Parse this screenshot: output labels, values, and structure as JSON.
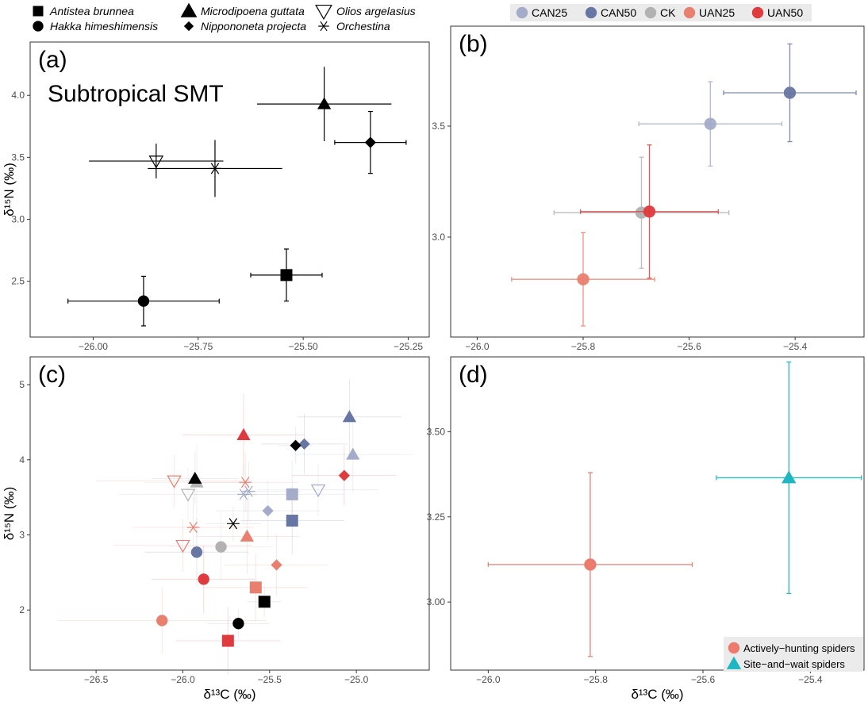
{
  "colors": {
    "CAN25": "#a4acc9",
    "CAN50": "#6876a3",
    "CK": "#b2b2b2",
    "UAN25": "#e9806f",
    "UAN50": "#df3a3d",
    "black": "#000000",
    "active": "#ec7a6d",
    "sitewait": "#1cb7c1"
  },
  "chart_data": [
    {
      "panel": "(a)",
      "type": "scatter",
      "annotation": "Subtropical SMT",
      "xlabel": "",
      "ylabel": "δ¹⁵N (‰)",
      "xlim": [
        -26.15,
        -25.2
      ],
      "ylim": [
        2.05,
        4.43
      ],
      "xticks": [
        -26.0,
        -25.75,
        -25.5,
        -25.25
      ],
      "xtick_labels": [
        "−26.00",
        "−25.75",
        "−25.50",
        "−25.25"
      ],
      "yticks": [
        2.5,
        3.0,
        3.5,
        4.0
      ],
      "ytick_labels": [
        "2.5",
        "3.0",
        "3.5",
        "4.0"
      ],
      "legend": {
        "placement": "top",
        "entries": [
          {
            "label": "Antistea brunnea",
            "shape": "square"
          },
          {
            "label": "Hakka himeshimensis",
            "shape": "circle"
          },
          {
            "label": "Microdipoena guttata",
            "shape": "triangle"
          },
          {
            "label": "Nippononeta projecta",
            "shape": "diamond"
          },
          {
            "label": "Olios argelasius",
            "shape": "triangle-down-open"
          },
          {
            "label": "Orchestina",
            "shape": "asterisk"
          }
        ]
      },
      "points": [
        {
          "species": "Antistea brunnea",
          "shape": "square",
          "x": -25.54,
          "y": 2.55,
          "xerr": 0.085,
          "yerr": 0.21
        },
        {
          "species": "Hakka himeshimensis",
          "shape": "circle",
          "x": -25.88,
          "y": 2.34,
          "xerr": 0.18,
          "yerr": 0.2
        },
        {
          "species": "Microdipoena guttata",
          "shape": "triangle",
          "x": -25.45,
          "y": 3.93,
          "xerr": 0.16,
          "yerr": 0.3
        },
        {
          "species": "Nippononeta projecta",
          "shape": "diamond",
          "x": -25.34,
          "y": 3.62,
          "xerr": 0.085,
          "yerr": 0.25
        },
        {
          "species": "Olios argelasius",
          "shape": "triangle-down-open",
          "x": -25.85,
          "y": 3.47,
          "xerr": 0.16,
          "yerr": 0.14
        },
        {
          "species": "Orchestina",
          "shape": "asterisk",
          "x": -25.71,
          "y": 3.41,
          "xerr": 0.16,
          "yerr": 0.23
        }
      ]
    },
    {
      "panel": "(b)",
      "type": "scatter",
      "xlabel": "",
      "ylabel": "",
      "xlim": [
        -26.05,
        -25.27
      ],
      "ylim": [
        2.55,
        3.95
      ],
      "xticks": [
        -26.0,
        -25.8,
        -25.6,
        -25.4
      ],
      "xtick_labels": [
        "−26.0",
        "−25.8",
        "−25.6",
        "−25.4"
      ],
      "yticks": [
        3.0,
        3.5
      ],
      "ytick_labels": [
        "3.0",
        "3.5"
      ],
      "legend": {
        "placement": "top",
        "entries": [
          "CAN25",
          "CAN50",
          "CK",
          "UAN25",
          "UAN50"
        ]
      },
      "points": [
        {
          "treatment": "CAN25",
          "x": -25.56,
          "y": 3.51,
          "xerr": 0.135,
          "yerr": 0.19
        },
        {
          "treatment": "CAN50",
          "x": -25.41,
          "y": 3.65,
          "xerr": 0.125,
          "yerr": 0.22
        },
        {
          "treatment": "CK",
          "x": -25.69,
          "y": 3.11,
          "xerr": 0.165,
          "yerr": 0.25
        },
        {
          "treatment": "UAN25",
          "x": -25.8,
          "y": 2.81,
          "xerr": 0.135,
          "yerr": 0.21
        },
        {
          "treatment": "UAN50",
          "x": -25.675,
          "y": 3.115,
          "xerr": 0.13,
          "yerr": 0.3
        }
      ]
    },
    {
      "panel": "(c)",
      "type": "scatter",
      "xlabel": "δ¹³C (‰)",
      "ylabel": "δ¹⁵N (‰)",
      "xlim": [
        -26.88,
        -24.58
      ],
      "ylim": [
        1.2,
        5.37
      ],
      "xticks": [
        -26.5,
        -26.0,
        -25.5,
        -25.0
      ],
      "xtick_labels": [
        "−26.5",
        "−26.0",
        "−25.5",
        "−25.0"
      ],
      "yticks": [
        2,
        3,
        4,
        5
      ],
      "ytick_labels": [
        "2",
        "3",
        "4",
        "5"
      ],
      "points": [
        {
          "shape": "triangle",
          "group": "CAN50",
          "x": -25.04,
          "y": 4.57,
          "xerr": 0.3,
          "yerr": 0.5
        },
        {
          "shape": "triangle",
          "group": "UAN50",
          "x": -25.65,
          "y": 4.33,
          "xerr": 0.35,
          "yerr": 0.55
        },
        {
          "shape": "triangle",
          "group": "CAN25",
          "x": -25.02,
          "y": 4.07,
          "xerr": 0.35,
          "yerr": 0.5
        },
        {
          "shape": "triangle",
          "group": "CK",
          "x": -25.92,
          "y": 3.7,
          "xerr": 0.3,
          "yerr": 0.5
        },
        {
          "shape": "triangle",
          "group": "black",
          "x": -25.93,
          "y": 3.75,
          "xerr": 0.25,
          "yerr": 0.35
        },
        {
          "shape": "triangle",
          "group": "UAN25",
          "x": -25.63,
          "y": 2.98,
          "xerr": 0.3,
          "yerr": 0.5
        },
        {
          "shape": "diamond",
          "group": "CAN50",
          "x": -25.3,
          "y": 4.21,
          "xerr": 0.25,
          "yerr": 0.4
        },
        {
          "shape": "diamond",
          "group": "black",
          "x": -25.35,
          "y": 4.19,
          "xerr": 0.1,
          "yerr": 0.25
        },
        {
          "shape": "diamond",
          "group": "UAN50",
          "x": -25.07,
          "y": 3.79,
          "xerr": 0.3,
          "yerr": 0.4
        },
        {
          "shape": "diamond",
          "group": "CAN25",
          "x": -25.51,
          "y": 3.32,
          "xerr": 0.3,
          "yerr": 0.4
        },
        {
          "shape": "diamond",
          "group": "UAN25",
          "x": -25.46,
          "y": 2.6,
          "xerr": 0.3,
          "yerr": 0.4
        },
        {
          "shape": "square",
          "group": "CAN25",
          "x": -25.37,
          "y": 3.54,
          "xerr": 0.3,
          "yerr": 0.45
        },
        {
          "shape": "square",
          "group": "CAN50",
          "x": -25.37,
          "y": 3.19,
          "xerr": 0.3,
          "yerr": 0.45
        },
        {
          "shape": "square",
          "group": "UAN25",
          "x": -25.58,
          "y": 2.3,
          "xerr": 0.3,
          "yerr": 0.45
        },
        {
          "shape": "square",
          "group": "black",
          "x": -25.53,
          "y": 2.11,
          "xerr": 0.1,
          "yerr": 0.2
        },
        {
          "shape": "square",
          "group": "UAN50",
          "x": -25.74,
          "y": 1.59,
          "xerr": 0.3,
          "yerr": 0.45
        },
        {
          "shape": "circle",
          "group": "CK",
          "x": -25.78,
          "y": 2.84,
          "xerr": 0.3,
          "yerr": 0.45
        },
        {
          "shape": "circle",
          "group": "CAN50",
          "x": -25.92,
          "y": 2.77,
          "xerr": 0.3,
          "yerr": 0.45
        },
        {
          "shape": "circle",
          "group": "UAN50",
          "x": -25.88,
          "y": 2.41,
          "xerr": 0.3,
          "yerr": 0.45
        },
        {
          "shape": "circle",
          "group": "black",
          "x": -25.68,
          "y": 1.82,
          "xerr": 0.18,
          "yerr": 0.2
        },
        {
          "shape": "circle",
          "group": "UAN25",
          "x": -26.12,
          "y": 1.86,
          "xerr": 0.6,
          "yerr": 0.45
        },
        {
          "shape": "triangle-down-open",
          "group": "UAN25",
          "x": -26.05,
          "y": 3.72,
          "xerr": 0.45,
          "yerr": 0.35
        },
        {
          "shape": "triangle-down-open",
          "group": "CK",
          "x": -25.97,
          "y": 3.54,
          "xerr": 0.4,
          "yerr": 0.35
        },
        {
          "shape": "triangle-down-open",
          "group": "CAN25",
          "x": -25.22,
          "y": 3.6,
          "xerr": 0.35,
          "yerr": 0.35
        },
        {
          "shape": "triangle-down-open",
          "group": "UAN25",
          "x": -26.0,
          "y": 2.86,
          "xerr": 0.4,
          "yerr": 0.35
        },
        {
          "shape": "asterisk",
          "group": "UAN25",
          "x": -25.64,
          "y": 3.7,
          "xerr": 0.3,
          "yerr": 0.4
        },
        {
          "shape": "asterisk",
          "group": "CAN25",
          "x": -25.65,
          "y": 3.54,
          "xerr": 0.3,
          "yerr": 0.4
        },
        {
          "shape": "asterisk",
          "group": "CAN25",
          "x": -25.62,
          "y": 3.58,
          "xerr": 0.3,
          "yerr": 0.4
        },
        {
          "shape": "asterisk",
          "group": "black",
          "x": -25.71,
          "y": 3.15,
          "xerr": 0.16,
          "yerr": 0.23
        },
        {
          "shape": "asterisk",
          "group": "UAN25",
          "x": -25.94,
          "y": 3.1,
          "xerr": 0.35,
          "yerr": 0.4
        }
      ]
    },
    {
      "panel": "(d)",
      "type": "scatter",
      "xlabel": "δ¹³C (‰)",
      "ylabel": "",
      "xlim": [
        -26.07,
        -25.3
      ],
      "ylim": [
        2.8,
        3.72
      ],
      "xticks": [
        -26.0,
        -25.8,
        -25.6,
        -25.4
      ],
      "xtick_labels": [
        "−26.0",
        "−25.8",
        "−25.6",
        "−25.4"
      ],
      "yticks": [
        3.0,
        3.25,
        3.5
      ],
      "ytick_labels": [
        "3.00",
        "3.25",
        "3.50"
      ],
      "legend": {
        "placement": "bottom-right",
        "entries": [
          "Actively−hunting spiders",
          "Site−and−wait spiders"
        ]
      },
      "points": [
        {
          "group": "Actively−hunting spiders",
          "shape": "circle",
          "x": -25.81,
          "y": 3.11,
          "xerr": 0.19,
          "yerr": 0.27
        },
        {
          "group": "Site−and−wait spiders",
          "shape": "triangle",
          "x": -25.44,
          "y": 3.365,
          "xerr": 0.135,
          "yerr": 0.34
        }
      ]
    }
  ]
}
